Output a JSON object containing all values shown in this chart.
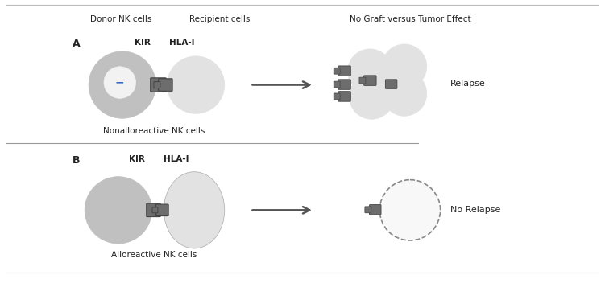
{
  "bg_color": "#ffffff",
  "border_color": "#bbbbbb",
  "cell_dark": "#aaaaaa",
  "cell_mid": "#c0c0c0",
  "cell_light": "#d5d5d5",
  "cell_lighter": "#e2e2e2",
  "nucleus_color": "#f2f2f2",
  "kir_color": "#6d6d6d",
  "hla_color": "#888888",
  "divider_color": "#999999",
  "arrow_color": "#555555",
  "text_color": "#222222",
  "blue_minus": "#3a6abf",
  "label_A": "A",
  "label_B": "B",
  "label_KIR": "KIR",
  "label_HLA": "HLA-I",
  "label_donor": "Donor NK cells",
  "label_recipient": "Recipient cells",
  "label_no_graft": "No Graft versus Tumor Effect",
  "label_nonallo": "Nonalloreactive NK cells",
  "label_allo": "Alloreactive NK cells",
  "label_relapse": "Relapse",
  "label_no_relapse": "No Relapse",
  "figsize": [
    7.51,
    3.52
  ],
  "dpi": 100
}
